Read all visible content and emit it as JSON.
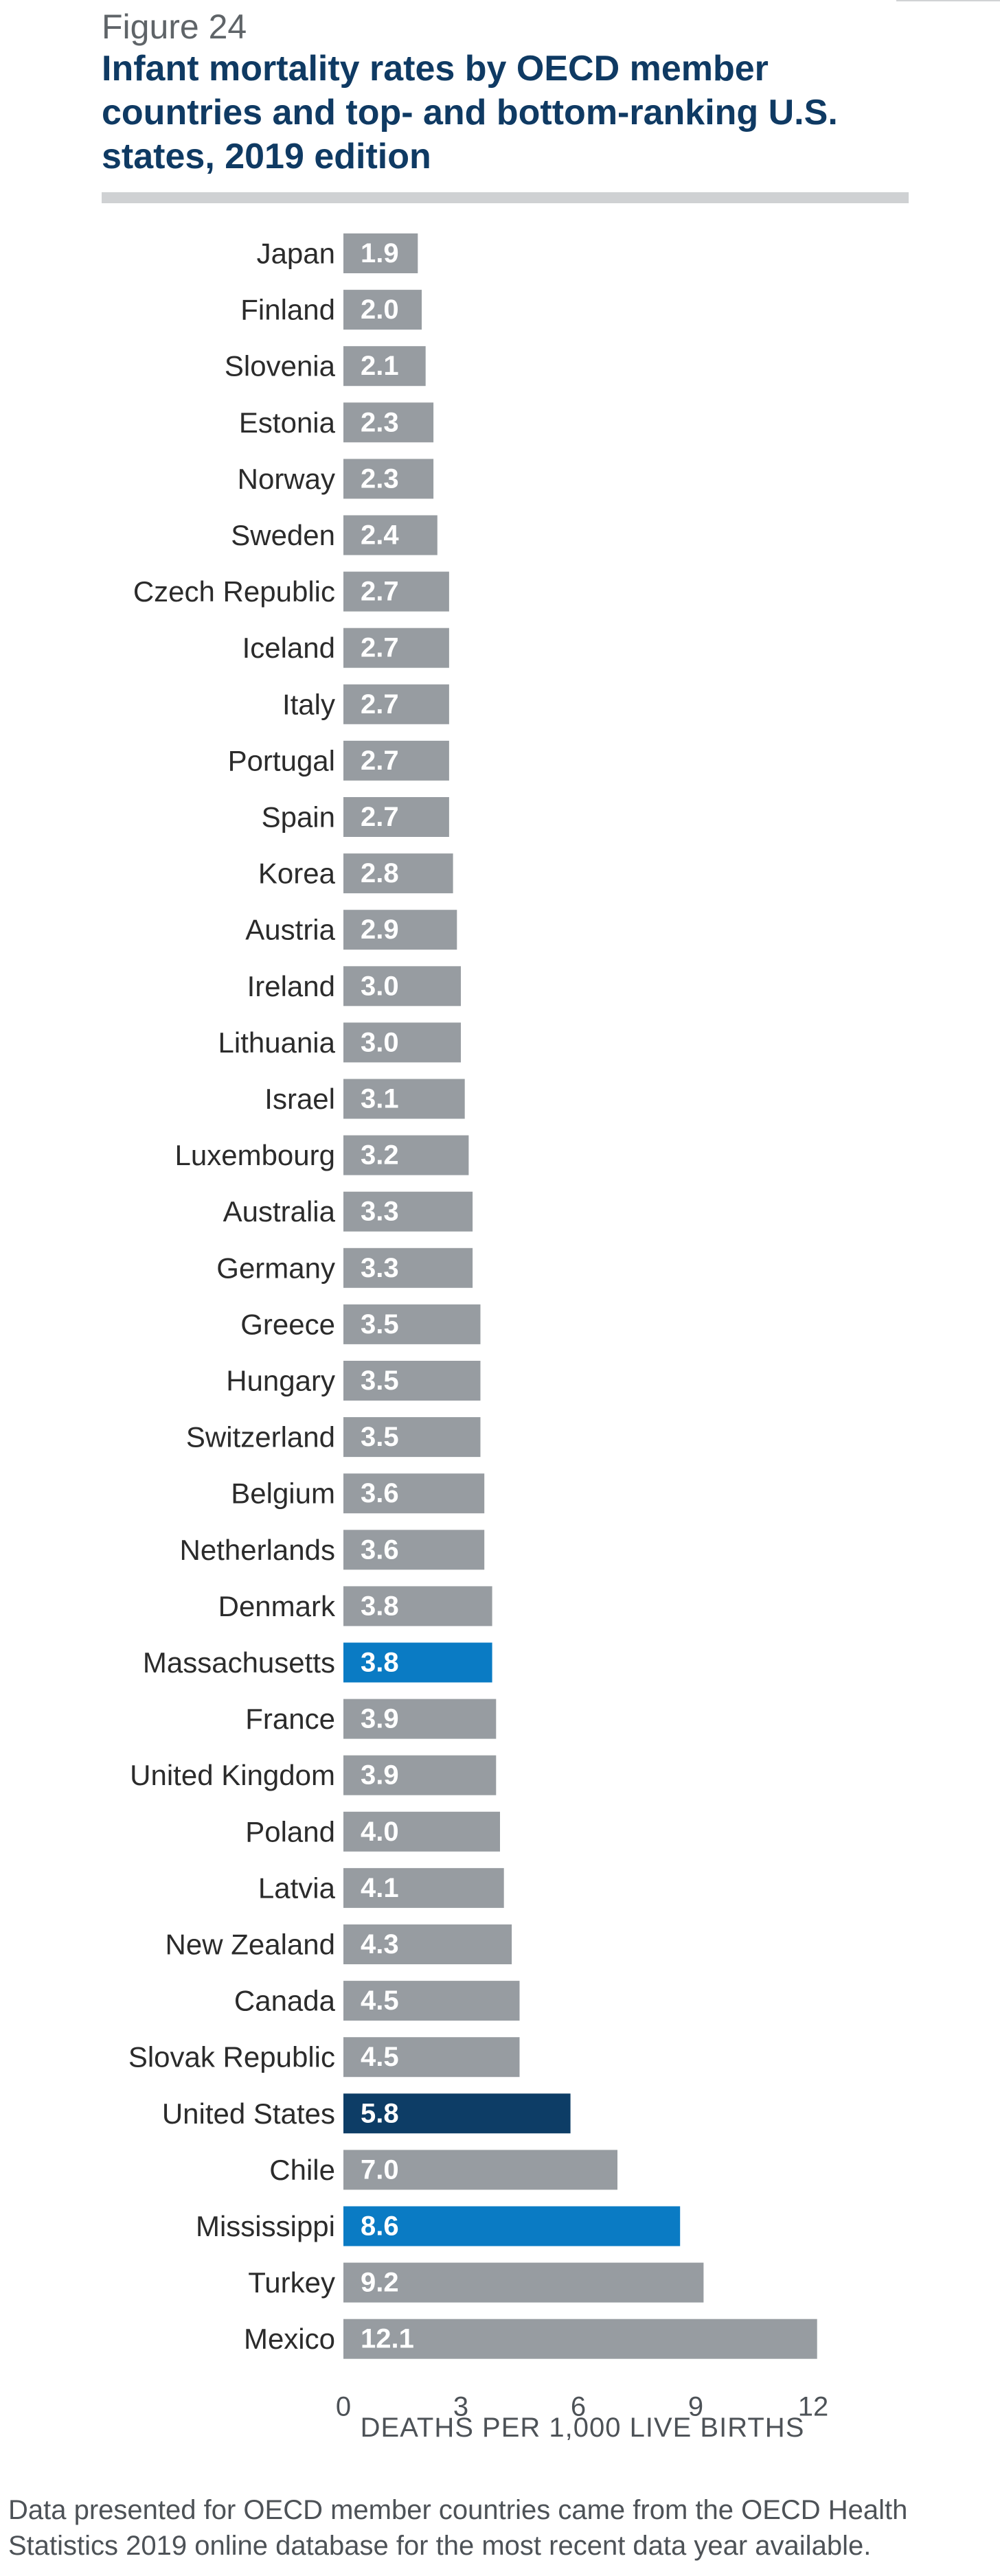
{
  "figure_label": "Figure 24",
  "title": "Infant mortality rates by OECD member countries and top- and bottom-ranking U.S. states, 2019 edition",
  "footnote": "Data presented for OECD member countries came from the OECD Health Statistics 2019 online database for the most recent data year available.",
  "colors": {
    "default": "#979ca1",
    "us_state": "#0a7bc4",
    "united_states": "#0d3d66",
    "label_text": "#2b2b2b",
    "value_text": "#ffffff"
  },
  "chart_data": {
    "type": "bar",
    "orientation": "horizontal",
    "xlabel": "DEATHS PER 1,000 LIVE BIRTHS",
    "xlim": [
      0,
      12.4
    ],
    "xticks": [
      0,
      3,
      6,
      9,
      12
    ],
    "grid": false,
    "legend": "none",
    "categories": [
      "Japan",
      "Finland",
      "Slovenia",
      "Estonia",
      "Norway",
      "Sweden",
      "Czech Republic",
      "Iceland",
      "Italy",
      "Portugal",
      "Spain",
      "Korea",
      "Austria",
      "Ireland",
      "Lithuania",
      "Israel",
      "Luxembourg",
      "Australia",
      "Germany",
      "Greece",
      "Hungary",
      "Switzerland",
      "Belgium",
      "Netherlands",
      "Denmark",
      "Massachusetts",
      "France",
      "United Kingdom",
      "Poland",
      "Latvia",
      "New Zealand",
      "Canada",
      "Slovak Republic",
      "United States",
      "Chile",
      "Mississippi",
      "Turkey",
      "Mexico"
    ],
    "values": [
      1.9,
      2.0,
      2.1,
      2.3,
      2.3,
      2.4,
      2.7,
      2.7,
      2.7,
      2.7,
      2.7,
      2.8,
      2.9,
      3.0,
      3.0,
      3.1,
      3.2,
      3.3,
      3.3,
      3.5,
      3.5,
      3.5,
      3.6,
      3.6,
      3.8,
      3.8,
      3.9,
      3.9,
      4.0,
      4.1,
      4.3,
      4.5,
      4.5,
      5.8,
      7.0,
      8.6,
      9.2,
      12.1
    ],
    "highlight": {
      "Massachusetts": "us_state",
      "Mississippi": "us_state",
      "United States": "united_states"
    }
  }
}
